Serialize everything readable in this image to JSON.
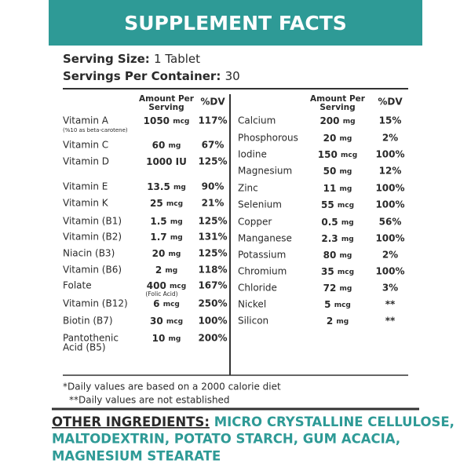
{
  "header": {
    "title": "SUPPLEMENT FACTS"
  },
  "serving": {
    "size_label": "Serving Size:",
    "size": "1 Tablet",
    "servings_label": "Servings Per Container:",
    "servings": "30"
  },
  "columns": {
    "amount": [
      "Amount Per",
      "Serving"
    ],
    "dv": "%DV"
  },
  "left_rows": [
    {
      "name": "Vitamin A",
      "note": "(%10 as beta-carotene)",
      "amount": "1050",
      "unit": "mcg",
      "dv": "117%"
    },
    {
      "name": "Vitamin C",
      "amount": "60",
      "unit": "mg",
      "dv": "67%"
    },
    {
      "name": "Vitamin D",
      "amount": "1000 IU",
      "dv": "125%"
    },
    {
      "name": "Vitamin E",
      "amount": "13.5",
      "unit": "mg",
      "dv": "90%"
    },
    {
      "name": "Vitamin K",
      "amount": "25",
      "unit": "mcg",
      "dv": "21%"
    },
    {
      "name": "Vitamin (B1)",
      "amount": "1.5",
      "unit": "mg",
      "dv": "125%"
    },
    {
      "name": "Vitamin (B2)",
      "amount": "1.7",
      "unit": "mg",
      "dv": "131%"
    },
    {
      "name": "Niacin (B3)",
      "amount": "20",
      "unit": "mg",
      "dv": "125%"
    },
    {
      "name": "Vitamin (B6)",
      "amount": "2",
      "unit": "mg",
      "dv": "118%"
    },
    {
      "name": "Folate",
      "amount": "400",
      "unit": "mcg",
      "amount_note": "(Folic Acid)",
      "dv": "167%"
    },
    {
      "name": "Vitamin (B12)",
      "amount": "6",
      "unit": "mcg",
      "dv": "250%"
    },
    {
      "name": "Biotin (B7)",
      "amount": "30",
      "unit": "mcg",
      "dv": "100%"
    },
    {
      "name": "Pantothenic",
      "name2": "Acid (B5)",
      "amount": "10",
      "unit": "mg",
      "dv": "200%"
    }
  ],
  "right_rows": [
    {
      "name": "Calcium",
      "amount": "200",
      "unit": "mg",
      "dv": "15%"
    },
    {
      "name": "Phosphorous",
      "amount": "20",
      "unit": "mg",
      "dv": "2%"
    },
    {
      "name": "Iodine",
      "amount": "150",
      "unit": "mcg",
      "dv": "100%"
    },
    {
      "name": "Magnesium",
      "amount": "50",
      "unit": "mg",
      "dv": "12%"
    },
    {
      "name": "Zinc",
      "amount": "11",
      "unit": "mg",
      "dv": "100%"
    },
    {
      "name": "Selenium",
      "amount": "55",
      "unit": "mcg",
      "dv": "100%"
    },
    {
      "name": "Copper",
      "amount": "0.5",
      "unit": "mg",
      "dv": "56%"
    },
    {
      "name": "Manganese",
      "amount": "2.3",
      "unit": "mg",
      "dv": "100%"
    },
    {
      "name": "Potassium",
      "amount": "80",
      "unit": "mg",
      "dv": "2%"
    },
    {
      "name": "Chromium",
      "amount": "35",
      "unit": "mcg",
      "dv": "100%"
    },
    {
      "name": "Chloride",
      "amount": "72",
      "unit": "mg",
      "dv": "3%"
    },
    {
      "name": "Nickel",
      "amount": "5",
      "unit": "mcg",
      "dv": "**"
    },
    {
      "name": "Silicon",
      "amount": "2",
      "unit": "mg",
      "dv": "**"
    }
  ],
  "footnotes": [
    "*Daily values are based on a 2000 calorie diet",
    "**Daily values are not established"
  ],
  "other_ingredients": {
    "label": "OTHER INGREDIENTS:",
    "lines": [
      "MICRO CRYSTALLINE CELLULOSE,",
      "MALTODEXTRIN, POTATO STARCH, GUM ACACIA,",
      "MAGNESIUM STEARATE"
    ]
  }
}
